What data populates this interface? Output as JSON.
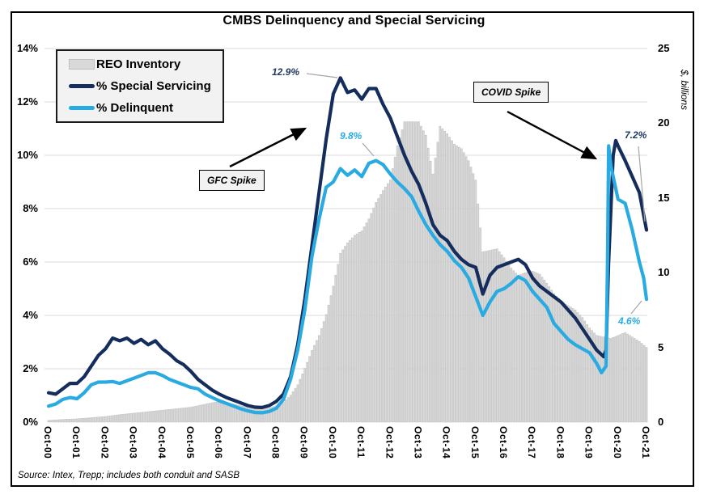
{
  "figure": {
    "title": "CMBS Delinquency and Special Servicing",
    "source_note": "Source: Intex, Trepp; includes both conduit and SASB"
  },
  "legend": {
    "items": [
      {
        "label": "REO Inventory",
        "type": "bar"
      },
      {
        "label": "% Special Servicing",
        "type": "line"
      },
      {
        "label": "% Delinquent",
        "type": "line"
      }
    ]
  },
  "chart_data": {
    "type": "combo-bar-line",
    "title": "CMBS Delinquency and Special Servicing",
    "grid": "horizontal",
    "legend_position": "top-left",
    "x_axis": {
      "unit": "years since Oct-2000, monthly data",
      "tick_labels": [
        "Oct-00",
        "Oct-01",
        "Oct-02",
        "Oct-03",
        "Oct-04",
        "Oct-05",
        "Oct-06",
        "Oct-07",
        "Oct-08",
        "Oct-09",
        "Oct-10",
        "Oct-11",
        "Oct-12",
        "Oct-13",
        "Oct-14",
        "Oct-15",
        "Oct-16",
        "Oct-17",
        "Oct-18",
        "Oct-19",
        "Oct-20",
        "Oct-21"
      ]
    },
    "left_axis": {
      "format": "percent",
      "range": [
        0,
        14
      ],
      "tick_values": [
        0,
        2,
        4,
        6,
        8,
        10,
        12,
        14
      ],
      "tick_labels": [
        "0%",
        "2%",
        "4%",
        "6%",
        "8%",
        "10%",
        "12%",
        "14%"
      ]
    },
    "right_axis": {
      "label": "$, billions",
      "range": [
        0,
        25
      ],
      "tick_values": [
        0,
        5,
        10,
        15,
        20,
        25
      ],
      "tick_labels": [
        "0",
        "5",
        "10",
        "15",
        "20",
        "25"
      ]
    },
    "series": [
      {
        "name": "REO Inventory",
        "type": "bar",
        "axis": "right",
        "color": "#D9D9D9",
        "edge_color": "#B9B9B9",
        "x_start": 0,
        "x_step": 0.25,
        "values": [
          0.12,
          0.15,
          0.18,
          0.2,
          0.22,
          0.26,
          0.3,
          0.34,
          0.38,
          0.44,
          0.5,
          0.55,
          0.6,
          0.65,
          0.7,
          0.75,
          0.8,
          0.85,
          0.9,
          0.95,
          1.0,
          1.1,
          1.2,
          1.3,
          1.38,
          1.3,
          1.2,
          1.1,
          1.0,
          0.95,
          0.92,
          0.95,
          1.1,
          1.35,
          1.8,
          2.5,
          3.6,
          4.8,
          5.8,
          7.2,
          9.1,
          11.3,
          12.0,
          12.5,
          12.8,
          13.6,
          14.7,
          15.5,
          16.2,
          18.5,
          20.1,
          20.1,
          20.1,
          19.2,
          16.6,
          19.8,
          19.3,
          18.6,
          18.3,
          17.5,
          16.2,
          11.4,
          11.5,
          11.6,
          11.0,
          10.3,
          9.8,
          10.0,
          10.1,
          9.9,
          9.3,
          8.6,
          8.1,
          7.8,
          7.5,
          7.0,
          6.3,
          5.8,
          5.7,
          5.6,
          5.8,
          6.0,
          5.7,
          5.4,
          5.0
        ]
      },
      {
        "name": "% Special Servicing",
        "type": "line",
        "axis": "left",
        "color": "#152D5C",
        "x": [
          0,
          0.25,
          0.5,
          0.75,
          1,
          1.25,
          1.5,
          1.75,
          2,
          2.25,
          2.5,
          2.75,
          3,
          3.25,
          3.5,
          3.75,
          4,
          4.25,
          4.5,
          4.75,
          5,
          5.25,
          5.5,
          5.75,
          6,
          6.25,
          6.5,
          6.75,
          7,
          7.25,
          7.5,
          7.75,
          8,
          8.25,
          8.5,
          8.75,
          9,
          9.25,
          9.5,
          9.75,
          10,
          10.25,
          10.5,
          10.75,
          11,
          11.25,
          11.5,
          11.75,
          12,
          12.25,
          12.5,
          12.75,
          13,
          13.25,
          13.5,
          13.75,
          14,
          14.25,
          14.5,
          14.75,
          15,
          15.25,
          15.5,
          15.75,
          16,
          16.25,
          16.5,
          16.75,
          17,
          17.25,
          17.5,
          17.75,
          18,
          18.25,
          18.5,
          18.75,
          19,
          19.25,
          19.5,
          19.58,
          19.67,
          19.83,
          19.92,
          20,
          20.25,
          20.5,
          20.75,
          21
        ],
        "values": [
          1.1,
          1.05,
          1.25,
          1.45,
          1.45,
          1.7,
          2.1,
          2.5,
          2.75,
          3.15,
          3.05,
          3.15,
          2.95,
          3.1,
          2.9,
          3.05,
          2.75,
          2.55,
          2.3,
          2.15,
          1.9,
          1.6,
          1.4,
          1.2,
          1.05,
          0.92,
          0.82,
          0.72,
          0.62,
          0.56,
          0.55,
          0.62,
          0.78,
          1.05,
          1.7,
          2.9,
          4.6,
          6.6,
          8.6,
          10.6,
          12.3,
          12.9,
          12.35,
          12.45,
          12.1,
          12.5,
          12.5,
          11.9,
          11.4,
          10.7,
          10.0,
          9.4,
          8.9,
          8.2,
          7.4,
          7.0,
          6.8,
          6.4,
          6.1,
          5.9,
          5.8,
          4.8,
          5.5,
          5.8,
          5.9,
          6.0,
          6.1,
          5.9,
          5.4,
          5.1,
          4.9,
          4.7,
          4.5,
          4.2,
          3.9,
          3.5,
          3.1,
          2.7,
          2.45,
          2.7,
          6.0,
          10.0,
          10.55,
          10.35,
          9.8,
          9.2,
          8.6,
          7.2
        ]
      },
      {
        "name": "% Delinquent",
        "type": "line",
        "axis": "left",
        "color": "#29ABE2",
        "x": [
          0,
          0.25,
          0.5,
          0.75,
          1,
          1.25,
          1.5,
          1.75,
          2,
          2.25,
          2.5,
          2.75,
          3,
          3.25,
          3.5,
          3.75,
          4,
          4.25,
          4.5,
          4.75,
          5,
          5.25,
          5.5,
          5.75,
          6,
          6.25,
          6.5,
          6.75,
          7,
          7.25,
          7.5,
          7.75,
          8,
          8.25,
          8.5,
          8.75,
          9,
          9.25,
          9.5,
          9.75,
          10,
          10.25,
          10.5,
          10.75,
          11,
          11.25,
          11.5,
          11.75,
          12,
          12.25,
          12.5,
          12.75,
          13,
          13.25,
          13.5,
          13.75,
          14,
          14.25,
          14.5,
          14.75,
          15,
          15.25,
          15.5,
          15.75,
          16,
          16.25,
          16.5,
          16.75,
          17,
          17.25,
          17.5,
          17.75,
          18,
          18.25,
          18.5,
          18.75,
          19,
          19.25,
          19.42,
          19.58,
          19.63,
          19.67,
          19.75,
          20,
          20.25,
          20.5,
          20.75,
          20.9,
          21
        ],
        "values": [
          0.6,
          0.68,
          0.85,
          0.92,
          0.88,
          1.1,
          1.4,
          1.5,
          1.5,
          1.52,
          1.45,
          1.55,
          1.65,
          1.75,
          1.85,
          1.85,
          1.75,
          1.6,
          1.5,
          1.4,
          1.3,
          1.25,
          1.05,
          0.92,
          0.8,
          0.7,
          0.6,
          0.5,
          0.42,
          0.36,
          0.35,
          0.4,
          0.52,
          0.85,
          1.6,
          2.7,
          4.2,
          6.2,
          7.6,
          8.8,
          9.0,
          9.5,
          9.25,
          9.45,
          9.2,
          9.7,
          9.8,
          9.65,
          9.3,
          9.0,
          8.75,
          8.45,
          7.9,
          7.4,
          7.0,
          6.65,
          6.4,
          6.05,
          5.8,
          5.4,
          4.7,
          4.0,
          4.5,
          4.9,
          5.0,
          5.2,
          5.45,
          5.3,
          4.9,
          4.6,
          4.3,
          3.7,
          3.4,
          3.1,
          2.9,
          2.75,
          2.6,
          2.2,
          1.85,
          2.1,
          6.0,
          10.35,
          9.6,
          8.35,
          8.2,
          7.2,
          6.0,
          5.4,
          4.6
        ]
      }
    ],
    "annotations": {
      "gfc_box": {
        "text": "GFC Spike"
      },
      "covid_box": {
        "text": "COVID Spike"
      },
      "ss_peak_label": {
        "text": "12.9%",
        "series": "% Special Servicing",
        "color": "#1F3864"
      },
      "dq_peak_label": {
        "text": "9.8%",
        "series": "% Delinquent",
        "color": "#29ABE2"
      },
      "ss_latest_label": {
        "text": "7.2%",
        "series": "% Special Servicing",
        "color": "#1F3864"
      },
      "dq_latest_label": {
        "text": "4.6%",
        "series": "% Delinquent",
        "color": "#29ABE2"
      }
    }
  }
}
